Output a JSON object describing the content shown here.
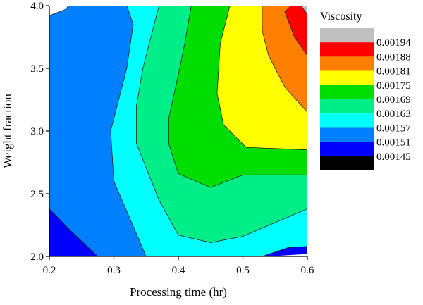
{
  "chart_data": {
    "type": "contour",
    "xlabel": "Processing time (hr)",
    "ylabel": "Weight fraction",
    "x_ticks": [
      "0.2",
      "0.3",
      "0.4",
      "0.5",
      "0.6"
    ],
    "y_ticks": [
      "2.0",
      "2.5",
      "3.0",
      "3.5",
      "4.0"
    ],
    "xlim": [
      0.2,
      0.6
    ],
    "ylim": [
      2.0,
      4.0
    ],
    "legend": {
      "title": "Viscosity",
      "placement": "right",
      "levels": [
        "0.00194",
        "0.00188",
        "0.00181",
        "0.00175",
        "0.00169",
        "0.00163",
        "0.00157",
        "0.00151",
        "0.00145"
      ],
      "colors": [
        "#c0c0c0",
        "#ff0000",
        "#ff8000",
        "#ffff00",
        "#00dd00",
        "#00ee88",
        "#00ffff",
        "#0080ff",
        "#0000ff",
        "#000000"
      ]
    },
    "contour_lines": [
      {
        "level": "0.00151",
        "points": [
          [
            0.2,
            2.38
          ],
          [
            0.23,
            2.22
          ],
          [
            0.275,
            2.0
          ]
        ]
      },
      {
        "level": "0.00157",
        "points": [
          [
            0.2,
            3.92
          ],
          [
            0.225,
            3.97
          ],
          [
            0.23,
            4.0
          ]
        ]
      },
      {
        "level": "0.00157",
        "points": [
          [
            0.32,
            4.0
          ],
          [
            0.33,
            3.85
          ],
          [
            0.32,
            3.5
          ],
          [
            0.295,
            3.0
          ],
          [
            0.3,
            2.6
          ],
          [
            0.35,
            2.0
          ]
        ]
      },
      {
        "level": "0.00157",
        "points": [
          [
            0.53,
            2.0
          ],
          [
            0.57,
            2.07
          ],
          [
            0.6,
            2.08
          ]
        ]
      },
      {
        "level": "0.00163",
        "points": [
          [
            0.37,
            4.0
          ],
          [
            0.36,
            3.8
          ],
          [
            0.345,
            3.5
          ],
          [
            0.335,
            3.2
          ],
          [
            0.335,
            2.9
          ],
          [
            0.37,
            2.45
          ],
          [
            0.4,
            2.17
          ],
          [
            0.45,
            2.11
          ],
          [
            0.5,
            2.16
          ],
          [
            0.6,
            2.38
          ]
        ]
      },
      {
        "level": "0.00169",
        "points": [
          [
            0.42,
            4.0
          ],
          [
            0.41,
            3.7
          ],
          [
            0.4,
            3.45
          ],
          [
            0.385,
            3.1
          ],
          [
            0.385,
            2.9
          ],
          [
            0.4,
            2.66
          ],
          [
            0.45,
            2.55
          ],
          [
            0.5,
            2.65
          ],
          [
            0.6,
            2.65
          ]
        ]
      },
      {
        "level": "0.00175",
        "points": [
          [
            0.48,
            4.0
          ],
          [
            0.465,
            3.7
          ],
          [
            0.46,
            3.3
          ],
          [
            0.47,
            3.05
          ],
          [
            0.505,
            2.87
          ],
          [
            0.6,
            2.85
          ]
        ]
      },
      {
        "level": "0.00181",
        "points": [
          [
            0.53,
            4.0
          ],
          [
            0.53,
            3.8
          ],
          [
            0.54,
            3.6
          ],
          [
            0.565,
            3.35
          ],
          [
            0.6,
            3.15
          ]
        ]
      },
      {
        "level": "0.00188",
        "points": [
          [
            0.575,
            4.0
          ],
          [
            0.565,
            3.95
          ],
          [
            0.58,
            3.75
          ],
          [
            0.6,
            3.6
          ]
        ]
      },
      {
        "level": "0.00194",
        "points": [
          [
            0.6,
            3.93
          ],
          [
            0.59,
            4.0
          ]
        ]
      }
    ]
  }
}
